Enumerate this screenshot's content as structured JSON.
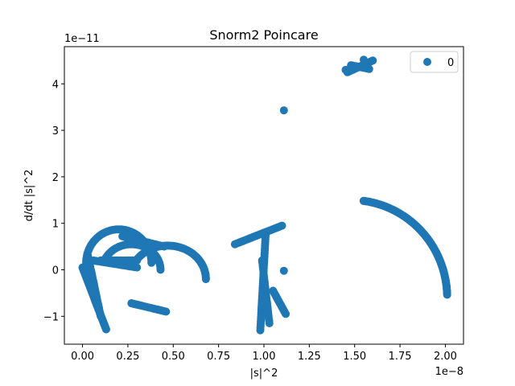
{
  "chart_data": {
    "type": "scatter",
    "title": "Snorm2 Poincare",
    "xlabel": "|s|^2",
    "ylabel": "d/dt |s|^2",
    "x_offset_label": "1e−8",
    "y_offset_label": "1e−11",
    "xlim": [
      -0.1,
      2.1
    ],
    "ylim": [
      -1.6,
      4.8
    ],
    "x_ticks": [
      0.0,
      0.25,
      0.5,
      0.75,
      1.0,
      1.25,
      1.5,
      1.75,
      2.0
    ],
    "x_tick_labels": [
      "0.00",
      "0.25",
      "0.50",
      "0.75",
      "1.00",
      "1.25",
      "1.50",
      "1.75",
      "2.00"
    ],
    "y_ticks": [
      -1,
      0,
      1,
      2,
      3,
      4
    ],
    "y_tick_labels": [
      "−1",
      "0",
      "1",
      "2",
      "3",
      "4"
    ],
    "grid": false,
    "legend_position": "top-right",
    "colors": {
      "series": "#1f77b4"
    },
    "series": [
      {
        "name": "0",
        "segments": [
          {
            "shape": "ellipse_arc",
            "cx": 1.48,
            "cy": -0.6,
            "rx": 0.53,
            "ry": 2.1,
            "t0": 0.03,
            "t1": 1.44,
            "n": 160
          },
          {
            "shape": "line",
            "x0": 0.84,
            "y0": 0.55,
            "x1": 1.1,
            "y1": 0.95,
            "n": 30
          },
          {
            "shape": "line",
            "x0": 1.01,
            "y0": 0.8,
            "x1": 0.98,
            "y1": -1.3,
            "n": 45
          },
          {
            "shape": "line",
            "x0": 0.99,
            "y0": 0.2,
            "x1": 1.03,
            "y1": -1.15,
            "n": 30
          },
          {
            "shape": "line",
            "x0": 1.05,
            "y0": -0.45,
            "x1": 1.12,
            "y1": -0.95,
            "n": 18
          },
          {
            "shape": "ellipse_arc",
            "cx": 0.47,
            "cy": -0.2,
            "rx": 0.21,
            "ry": 0.72,
            "t0": 0.0,
            "t1": 2.6,
            "n": 70
          },
          {
            "shape": "line",
            "x0": 0.27,
            "y0": -0.72,
            "x1": 0.46,
            "y1": -0.9,
            "n": 20
          },
          {
            "shape": "ellipse_arc",
            "cx": 0.2,
            "cy": 0.15,
            "rx": 0.18,
            "ry": 0.72,
            "t0": 0.0,
            "t1": 3.14,
            "n": 60
          },
          {
            "shape": "ellipse_arc",
            "cx": 0.27,
            "cy": 0.0,
            "rx": 0.16,
            "ry": 0.55,
            "t0": 0.0,
            "t1": 2.8,
            "n": 45
          },
          {
            "shape": "line",
            "x0": 0.0,
            "y0": 0.05,
            "x1": 0.13,
            "y1": -1.28,
            "n": 60
          },
          {
            "shape": "line",
            "x0": 0.03,
            "y0": 0.3,
            "x1": 0.1,
            "y1": -1.0,
            "n": 40
          },
          {
            "shape": "line",
            "x0": 0.06,
            "y0": 0.2,
            "x1": 0.3,
            "y1": 0.05,
            "n": 25
          },
          {
            "shape": "line",
            "x0": 0.1,
            "y0": 0.2,
            "x1": 0.3,
            "y1": 0.2,
            "n": 20
          },
          {
            "shape": "line",
            "x0": 0.22,
            "y0": 0.72,
            "x1": 0.45,
            "y1": 0.5,
            "n": 25
          },
          {
            "shape": "line",
            "x0": 1.46,
            "y0": 4.25,
            "x1": 1.6,
            "y1": 4.5,
            "n": 25
          },
          {
            "shape": "line",
            "x0": 1.48,
            "y0": 4.4,
            "x1": 1.58,
            "y1": 4.32,
            "n": 12
          }
        ],
        "points": [
          {
            "x": 1.11,
            "y": 3.43
          },
          {
            "x": 1.11,
            "y": -0.02
          },
          {
            "x": 1.45,
            "y": 4.3
          },
          {
            "x": 1.55,
            "y": 4.52
          },
          {
            "x": 0.13,
            "y": -1.28
          },
          {
            "x": 0.27,
            "y": -0.72
          }
        ]
      }
    ]
  }
}
